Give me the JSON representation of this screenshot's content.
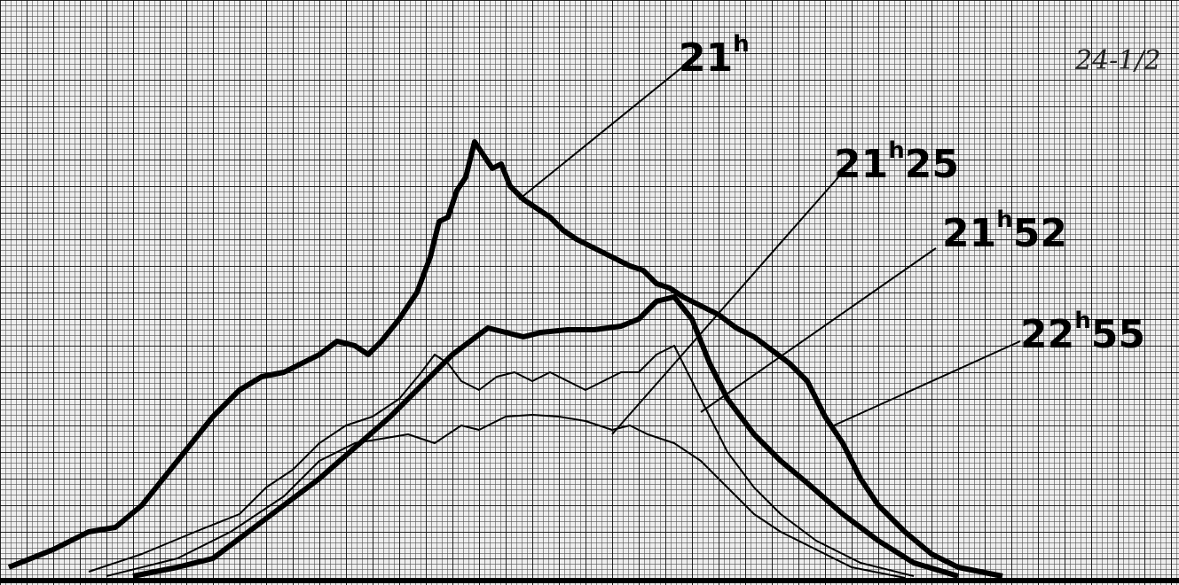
{
  "labels": [
    {
      "hour": "21",
      "mark": "h",
      "minutes": ""
    },
    {
      "hour": "21",
      "mark": "h",
      "minutes": "25"
    },
    {
      "hour": "21",
      "mark": "h",
      "minutes": "52"
    },
    {
      "hour": "22",
      "mark": "h",
      "minutes": "55"
    }
  ],
  "corner_note": "24-1/2"
}
